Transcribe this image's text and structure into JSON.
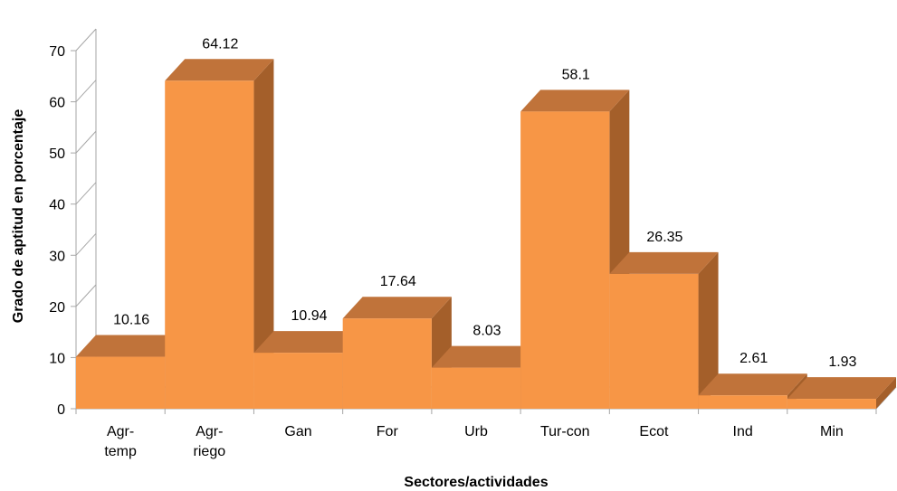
{
  "chart_data": {
    "type": "bar",
    "style": "3d",
    "categories": [
      [
        "Agr-",
        "temp"
      ],
      [
        "Agr-",
        "riego"
      ],
      [
        "Gan"
      ],
      [
        "For"
      ],
      [
        "Urb"
      ],
      [
        "Tur-con"
      ],
      [
        "Ecot"
      ],
      [
        "Ind"
      ],
      [
        "Min"
      ]
    ],
    "values": [
      10.16,
      64.12,
      10.94,
      17.64,
      8.03,
      58.1,
      26.35,
      2.61,
      1.93
    ],
    "value_labels": [
      "10.16",
      "64.12",
      "10.94",
      "17.64",
      "8.03",
      "58.1",
      "26.35",
      "2.61",
      "1.93"
    ],
    "xlabel": "Sectores/actividades",
    "ylabel": "Grado de aptitud en porcentaje",
    "ylim": [
      0,
      70
    ],
    "yticks": [
      "0",
      "10",
      "20",
      "30",
      "40",
      "50",
      "60",
      "70"
    ],
    "grid": false,
    "legend": "none",
    "colors": {
      "front": "#F79646",
      "top": "#C0733A",
      "side": "#A45F2A",
      "axis": "#A6A6A6"
    }
  }
}
